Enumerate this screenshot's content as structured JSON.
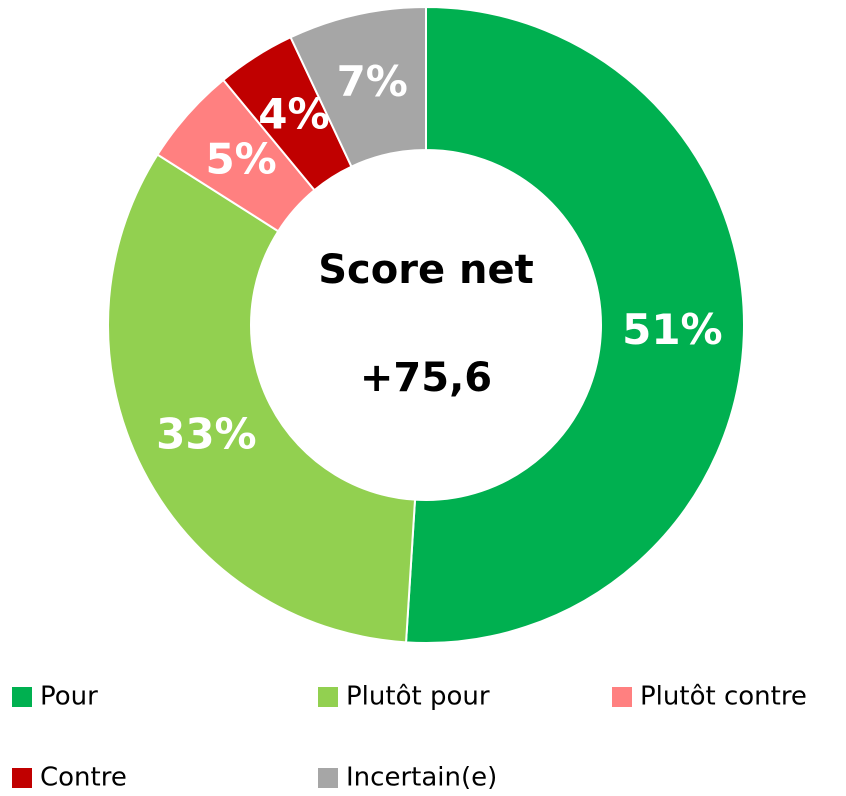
{
  "chart_data": {
    "type": "donut",
    "categories": [
      "Pour",
      "Plutôt pour",
      "Plutôt contre",
      "Contre",
      "Incertain(e)"
    ],
    "values": [
      51,
      33,
      5,
      4,
      7
    ],
    "value_labels": [
      "51%",
      "33%",
      "5%",
      "4%",
      "7%"
    ],
    "colors": [
      "#00b050",
      "#92d050",
      "#ff8080",
      "#c00000",
      "#a6a6a6"
    ],
    "annotations": [
      "Score net",
      "+75,6"
    ],
    "legend": "bottom"
  }
}
